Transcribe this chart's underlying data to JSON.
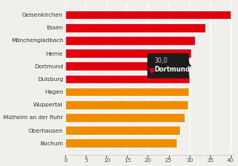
{
  "cities": [
    "Gelsenkirchen",
    "Essen",
    "Mönchengladbach",
    "Herne",
    "Dortmund",
    "Duisburg",
    "Hagen",
    "Wuppertal",
    "Mülheim an der Ruhr",
    "Oberhausen",
    "Bochum"
  ],
  "values": [
    40.0,
    34.0,
    31.5,
    30.5,
    30.0,
    30.0,
    29.8,
    29.7,
    29.0,
    27.8,
    27.0
  ],
  "colors": [
    "#e3000d",
    "#e3000d",
    "#e3000d",
    "#e3000d",
    "#e3000d",
    "#e3000d",
    "#f08c00",
    "#f08c00",
    "#f08c00",
    "#f08c00",
    "#f08c00"
  ],
  "highlight_index": 4,
  "highlight_label": "Dortmund",
  "highlight_value": "30,0",
  "xlim": [
    0,
    41
  ],
  "xticks": [
    0,
    5,
    10,
    15,
    20,
    25,
    30,
    35,
    40
  ],
  "bg_color": "#f0efeb",
  "grid_color": "#ffffff",
  "label_fontsize": 5.2,
  "tick_fontsize": 5.2,
  "bar_height": 0.72,
  "bar_edge_color": "#ffffff",
  "bar_edge_width": 1.0
}
